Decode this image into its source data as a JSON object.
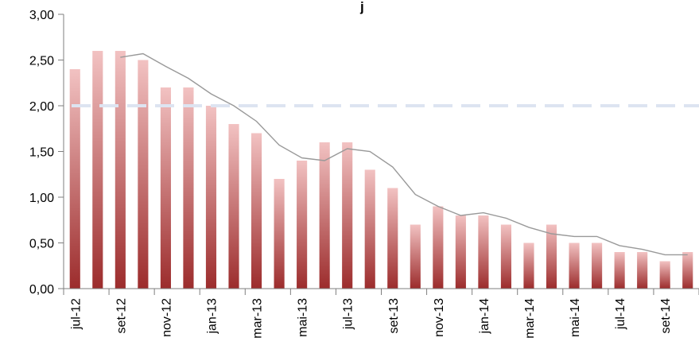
{
  "chart_data": {
    "type": "bar",
    "title": "",
    "title_fragment": "j",
    "categories": [
      "jul-12",
      "ago-12",
      "set-12",
      "out-12",
      "nov-12",
      "dez-12",
      "jan-13",
      "fev-13",
      "mar-13",
      "abr-13",
      "mai-13",
      "jun-13",
      "jul-13",
      "ago-13",
      "set-13",
      "out-13",
      "nov-13",
      "dez-13",
      "jan-14",
      "fev-14",
      "mar-14",
      "abr-14",
      "mai-14",
      "jun-14",
      "jul-14",
      "ago-14",
      "set-14",
      "out-14"
    ],
    "x_tick_labels": [
      "jul-12",
      "set-12",
      "nov-12",
      "jan-13",
      "mar-13",
      "mai-13",
      "jul-13",
      "set-13",
      "nov-13",
      "jan-14",
      "mar-14",
      "mai-14",
      "jul-14",
      "set-14"
    ],
    "series": [
      {
        "values": [
          2.4,
          2.6,
          2.6,
          2.5,
          2.2,
          2.2,
          2.0,
          1.8,
          1.7,
          1.2,
          1.4,
          1.6,
          1.6,
          1.3,
          1.1,
          0.7,
          0.9,
          0.8,
          0.8,
          0.7,
          0.5,
          0.7,
          0.5,
          0.5,
          0.4,
          0.4,
          0.3,
          0.4
        ],
        "color": "#b03a3a",
        "kind": "bar"
      },
      {
        "values": [
          null,
          null,
          2.53,
          2.57,
          2.43,
          2.3,
          2.13,
          2.0,
          1.83,
          1.57,
          1.43,
          1.4,
          1.53,
          1.5,
          1.33,
          1.03,
          0.9,
          0.8,
          0.83,
          0.77,
          0.67,
          0.6,
          0.57,
          0.57,
          0.47,
          0.43,
          0.37,
          0.37
        ],
        "color": "#999999",
        "kind": "line"
      }
    ],
    "reference_line": {
      "value": 2.0,
      "color": "#dde4f1",
      "style": "dashed"
    },
    "y_tick_labels": [
      "0,00",
      "0,50",
      "1,00",
      "1,50",
      "2,00",
      "2,50",
      "3,00"
    ],
    "ylim": [
      0,
      3
    ],
    "xlabel": "",
    "ylabel": "",
    "grid": false,
    "legend": "none"
  }
}
